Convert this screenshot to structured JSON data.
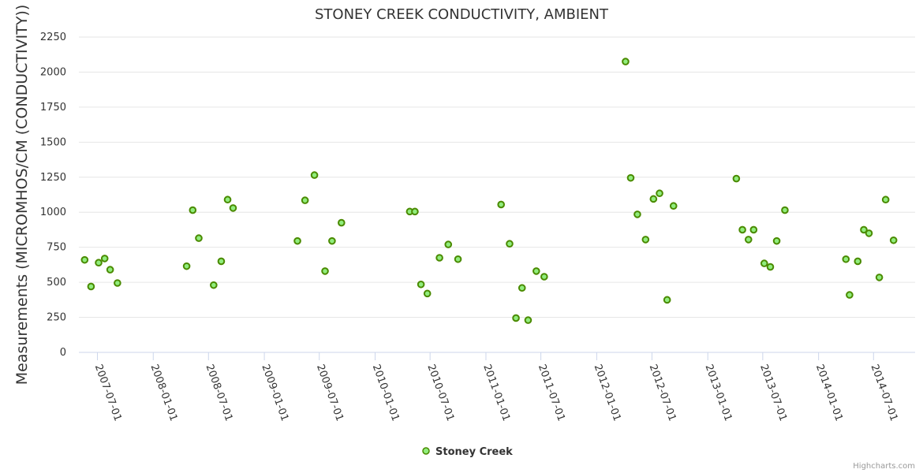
{
  "chart_data": {
    "type": "scatter",
    "title": "STONEY CREEK CONDUCTIVITY, AMBIENT",
    "ylabel": "Measurements (MICROMHOS/CM (CONDUCTIVITY))",
    "xlabel": "",
    "ylim": [
      0,
      2250
    ],
    "y_ticks": [
      0,
      250,
      500,
      750,
      1000,
      1250,
      1500,
      1750,
      2000,
      2250
    ],
    "x_ticks": [
      "2007-07-01",
      "2008-01-01",
      "2008-07-01",
      "2009-01-01",
      "2009-07-01",
      "2010-01-01",
      "2010-07-01",
      "2011-01-01",
      "2011-07-01",
      "2012-01-01",
      "2012-07-01",
      "2013-01-01",
      "2013-07-01",
      "2014-01-01",
      "2014-07-01"
    ],
    "xlim": [
      "2007-05-01",
      "2014-11-15"
    ],
    "grid": true,
    "legend_position": "bottom-center",
    "series": [
      {
        "name": "Stoney Creek",
        "color": "#90ed7d",
        "stroke": "#4a8a00",
        "points": [
          {
            "x": "2007-05-20",
            "y": 660
          },
          {
            "x": "2007-06-10",
            "y": 470
          },
          {
            "x": "2007-07-05",
            "y": 640
          },
          {
            "x": "2007-07-25",
            "y": 670
          },
          {
            "x": "2007-08-12",
            "y": 590
          },
          {
            "x": "2007-09-05",
            "y": 495
          },
          {
            "x": "2008-04-20",
            "y": 615
          },
          {
            "x": "2008-05-10",
            "y": 1015
          },
          {
            "x": "2008-05-30",
            "y": 815
          },
          {
            "x": "2008-07-18",
            "y": 480
          },
          {
            "x": "2008-08-12",
            "y": 650
          },
          {
            "x": "2008-09-02",
            "y": 1090
          },
          {
            "x": "2008-09-20",
            "y": 1030
          },
          {
            "x": "2009-04-20",
            "y": 795
          },
          {
            "x": "2009-05-15",
            "y": 1085
          },
          {
            "x": "2009-06-15",
            "y": 1265
          },
          {
            "x": "2009-07-20",
            "y": 580
          },
          {
            "x": "2009-08-12",
            "y": 795
          },
          {
            "x": "2009-09-12",
            "y": 925
          },
          {
            "x": "2010-04-25",
            "y": 1005
          },
          {
            "x": "2010-05-12",
            "y": 1005
          },
          {
            "x": "2010-06-01",
            "y": 485
          },
          {
            "x": "2010-06-22",
            "y": 420
          },
          {
            "x": "2010-08-01",
            "y": 675
          },
          {
            "x": "2010-08-30",
            "y": 770
          },
          {
            "x": "2010-10-01",
            "y": 665
          },
          {
            "x": "2011-02-20",
            "y": 1055
          },
          {
            "x": "2011-03-20",
            "y": 775
          },
          {
            "x": "2011-04-10",
            "y": 245
          },
          {
            "x": "2011-04-30",
            "y": 460
          },
          {
            "x": "2011-05-20",
            "y": 230
          },
          {
            "x": "2011-06-16",
            "y": 580
          },
          {
            "x": "2011-07-12",
            "y": 540
          },
          {
            "x": "2012-04-05",
            "y": 2075
          },
          {
            "x": "2012-04-22",
            "y": 1245
          },
          {
            "x": "2012-05-14",
            "y": 985
          },
          {
            "x": "2012-06-10",
            "y": 805
          },
          {
            "x": "2012-07-06",
            "y": 1095
          },
          {
            "x": "2012-07-26",
            "y": 1135
          },
          {
            "x": "2012-08-20",
            "y": 375
          },
          {
            "x": "2012-09-10",
            "y": 1045
          },
          {
            "x": "2013-04-05",
            "y": 1240
          },
          {
            "x": "2013-04-25",
            "y": 875
          },
          {
            "x": "2013-05-15",
            "y": 805
          },
          {
            "x": "2013-06-01",
            "y": 875
          },
          {
            "x": "2013-07-06",
            "y": 635
          },
          {
            "x": "2013-07-26",
            "y": 610
          },
          {
            "x": "2013-08-16",
            "y": 795
          },
          {
            "x": "2013-09-12",
            "y": 1015
          },
          {
            "x": "2014-04-01",
            "y": 665
          },
          {
            "x": "2014-04-13",
            "y": 410
          },
          {
            "x": "2014-05-10",
            "y": 650
          },
          {
            "x": "2014-05-30",
            "y": 875
          },
          {
            "x": "2014-06-16",
            "y": 850
          },
          {
            "x": "2014-07-20",
            "y": 535
          },
          {
            "x": "2014-08-10",
            "y": 1090
          },
          {
            "x": "2014-09-05",
            "y": 800
          }
        ]
      }
    ]
  },
  "legend": {
    "label": "Stoney Creek"
  },
  "credits": {
    "label": "Highcharts.com"
  }
}
